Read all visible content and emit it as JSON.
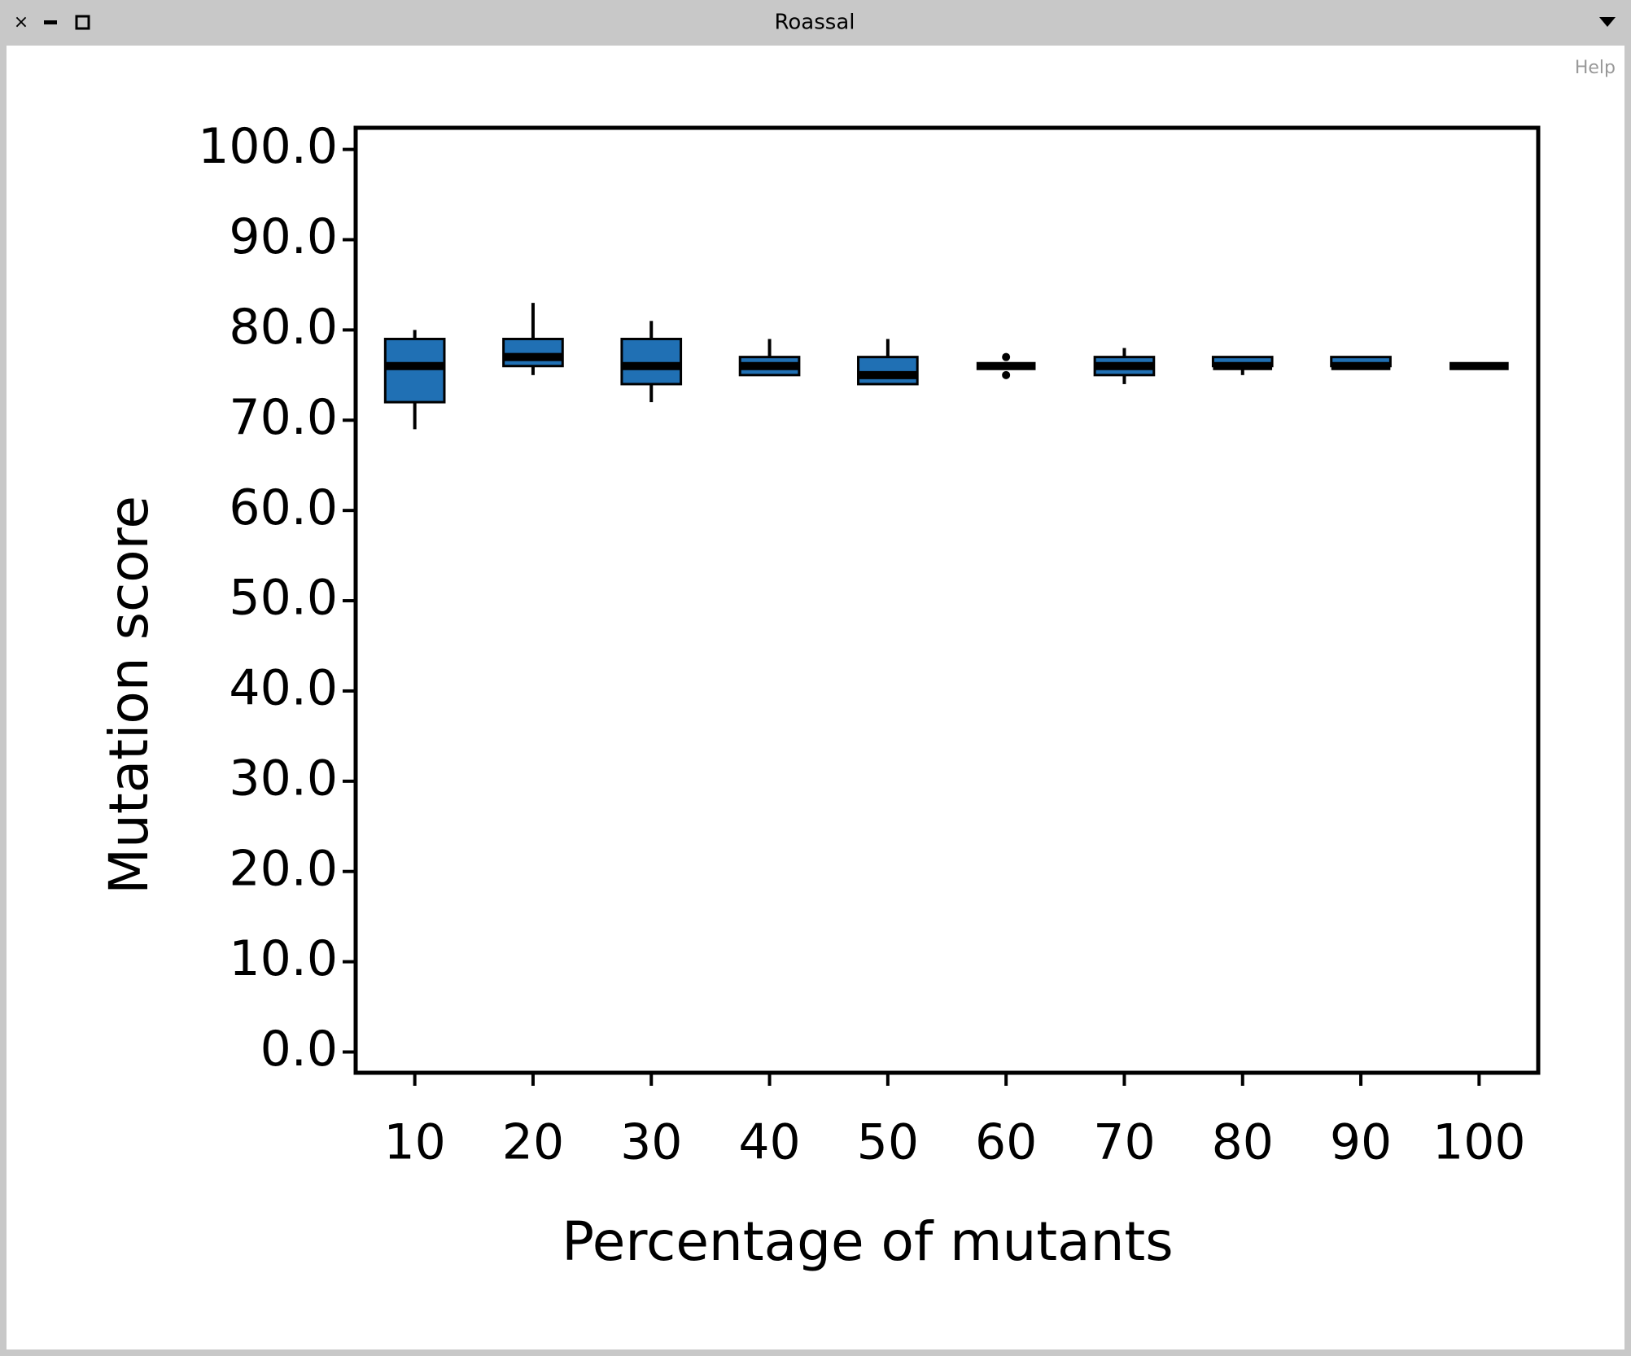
{
  "window": {
    "title": "Roassal",
    "help": "Help"
  },
  "chart_data": {
    "type": "box",
    "xlabel": "Percentage of mutants",
    "ylabel": "Mutation score",
    "categories": [
      "10",
      "20",
      "30",
      "40",
      "50",
      "60",
      "70",
      "80",
      "90",
      "100"
    ],
    "boxes": [
      {
        "whislo": 69,
        "q1": 72,
        "med": 76,
        "q3": 79,
        "whishi": 80,
        "fliers": []
      },
      {
        "whislo": 75,
        "q1": 76,
        "med": 77,
        "q3": 79,
        "whishi": 83,
        "fliers": []
      },
      {
        "whislo": 72,
        "q1": 74,
        "med": 76,
        "q3": 79,
        "whishi": 81,
        "fliers": []
      },
      {
        "whislo": 75,
        "q1": 75,
        "med": 76,
        "q3": 77,
        "whishi": 79,
        "fliers": []
      },
      {
        "whislo": 74,
        "q1": 74,
        "med": 75,
        "q3": 77,
        "whishi": 79,
        "fliers": []
      },
      {
        "whislo": 76,
        "q1": 76,
        "med": 76,
        "q3": 76,
        "whishi": 76,
        "fliers": [
          77,
          75
        ]
      },
      {
        "whislo": 74,
        "q1": 75,
        "med": 76,
        "q3": 77,
        "whishi": 78,
        "fliers": []
      },
      {
        "whislo": 75,
        "q1": 76,
        "med": 76,
        "q3": 77,
        "whishi": 77,
        "fliers": []
      },
      {
        "whislo": 76,
        "q1": 76,
        "med": 76,
        "q3": 77,
        "whishi": 77,
        "fliers": []
      },
      {
        "whislo": 76,
        "q1": 76,
        "med": 76,
        "q3": 76,
        "whishi": 76,
        "fliers": []
      }
    ],
    "color": "#2070b4",
    "ylim": [
      -2.3,
      102.4
    ],
    "yticks": [
      {
        "value": 0,
        "label": "0.0"
      },
      {
        "value": 10,
        "label": "10.0"
      },
      {
        "value": 20,
        "label": "20.0"
      },
      {
        "value": 30,
        "label": "30.0"
      },
      {
        "value": 40,
        "label": "40.0"
      },
      {
        "value": 50,
        "label": "50.0"
      },
      {
        "value": 60,
        "label": "60.0"
      },
      {
        "value": 70,
        "label": "70.0"
      },
      {
        "value": 80,
        "label": "80.0"
      },
      {
        "value": 90,
        "label": "90.0"
      },
      {
        "value": 100,
        "label": "100.0"
      }
    ]
  }
}
